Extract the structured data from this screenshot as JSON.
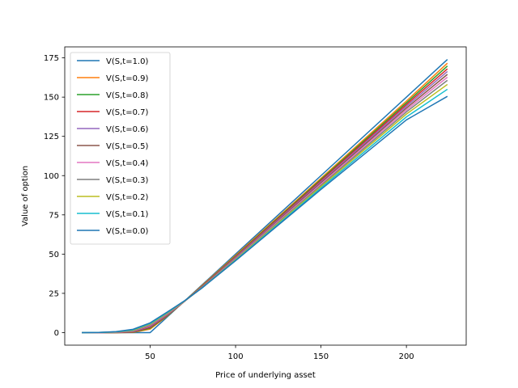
{
  "chart_data": {
    "type": "line",
    "title": "",
    "xlabel": "Price of underlying asset",
    "ylabel": "Value of option",
    "xlim": [
      0,
      235
    ],
    "ylim": [
      -8,
      182
    ],
    "xticks": [
      50,
      100,
      150,
      200
    ],
    "yticks": [
      0,
      25,
      50,
      75,
      100,
      125,
      150,
      175
    ],
    "grid": false,
    "legend_position": "top-left",
    "series": [
      {
        "name": "V(S,t=1.0)",
        "color": "#1f77b4",
        "x": [
          10,
          20,
          30,
          40,
          50,
          60,
          70,
          80,
          100,
          150,
          200,
          224
        ],
        "y": [
          0,
          0,
          0,
          0,
          0,
          10,
          20,
          30,
          50,
          100,
          150,
          174
        ]
      },
      {
        "name": "V(S,t=0.9)",
        "color": "#ff7f0e",
        "x": [
          10,
          20,
          30,
          40,
          50,
          60,
          70,
          80,
          100,
          150,
          200,
          224
        ],
        "y": [
          0,
          0,
          0,
          0.1,
          2.2,
          10.5,
          19.9,
          29.6,
          49.2,
          98.3,
          147.5,
          171.6
        ]
      },
      {
        "name": "V(S,t=0.8)",
        "color": "#2ca02c",
        "x": [
          10,
          20,
          30,
          40,
          50,
          60,
          70,
          80,
          100,
          150,
          200,
          224
        ],
        "y": [
          0,
          0,
          0,
          0.2,
          2.8,
          10.7,
          19.8,
          29.3,
          48.7,
          97.6,
          146.4,
          169.8
        ]
      },
      {
        "name": "V(S,t=0.7)",
        "color": "#d62728",
        "x": [
          10,
          20,
          30,
          40,
          50,
          60,
          70,
          80,
          100,
          150,
          200,
          224
        ],
        "y": [
          0,
          0,
          0,
          0.4,
          3.3,
          11.0,
          19.8,
          29.1,
          48.3,
          96.9,
          145.3,
          168.0
        ]
      },
      {
        "name": "V(S,t=0.6)",
        "color": "#9467bd",
        "x": [
          10,
          20,
          30,
          40,
          50,
          60,
          70,
          80,
          100,
          150,
          200,
          224
        ],
        "y": [
          0,
          0,
          0.1,
          0.6,
          3.8,
          11.3,
          19.8,
          28.9,
          47.9,
          96.1,
          144.2,
          166.3
        ]
      },
      {
        "name": "V(S,t=0.5)",
        "color": "#8c564b",
        "x": [
          10,
          20,
          30,
          40,
          50,
          60,
          70,
          80,
          100,
          150,
          200,
          224
        ],
        "y": [
          0,
          0,
          0.1,
          0.8,
          4.2,
          11.6,
          19.8,
          28.7,
          47.5,
          95.4,
          143.0,
          164.5
        ]
      },
      {
        "name": "V(S,t=0.4)",
        "color": "#e377c2",
        "x": [
          10,
          20,
          30,
          40,
          50,
          60,
          70,
          80,
          100,
          150,
          200,
          224
        ],
        "y": [
          0,
          0,
          0.2,
          1.0,
          4.6,
          11.9,
          19.8,
          28.5,
          47.1,
          94.6,
          141.8,
          162.7
        ]
      },
      {
        "name": "V(S,t=0.3)",
        "color": "#7f7f7f",
        "x": [
          10,
          20,
          30,
          40,
          50,
          60,
          70,
          80,
          100,
          150,
          200,
          224
        ],
        "y": [
          0,
          0,
          0.3,
          1.2,
          5.0,
          12.2,
          19.9,
          28.4,
          46.8,
          93.8,
          140.6,
          160.7
        ]
      },
      {
        "name": "V(S,t=0.2)",
        "color": "#bcbd22",
        "x": [
          10,
          20,
          30,
          40,
          50,
          60,
          70,
          80,
          100,
          150,
          200,
          224
        ],
        "y": [
          0,
          0.1,
          0.4,
          1.5,
          5.4,
          12.5,
          20.0,
          28.3,
          46.4,
          93.0,
          139.2,
          158.1
        ]
      },
      {
        "name": "V(S,t=0.1)",
        "color": "#17becf",
        "x": [
          10,
          20,
          30,
          40,
          50,
          60,
          70,
          80,
          100,
          150,
          200,
          224
        ],
        "y": [
          0,
          0.1,
          0.5,
          1.8,
          5.8,
          12.8,
          20.1,
          28.2,
          46.1,
          92.1,
          137.4,
          155.0
        ]
      },
      {
        "name": "V(S,t=0.0)",
        "color": "#1f77b4",
        "x": [
          10,
          20,
          30,
          40,
          50,
          60,
          70,
          80,
          100,
          150,
          200,
          224
        ],
        "y": [
          0,
          0.1,
          0.6,
          2.1,
          6.2,
          13.1,
          20.2,
          28.1,
          45.8,
          91.2,
          135.5,
          150.5
        ]
      }
    ]
  }
}
